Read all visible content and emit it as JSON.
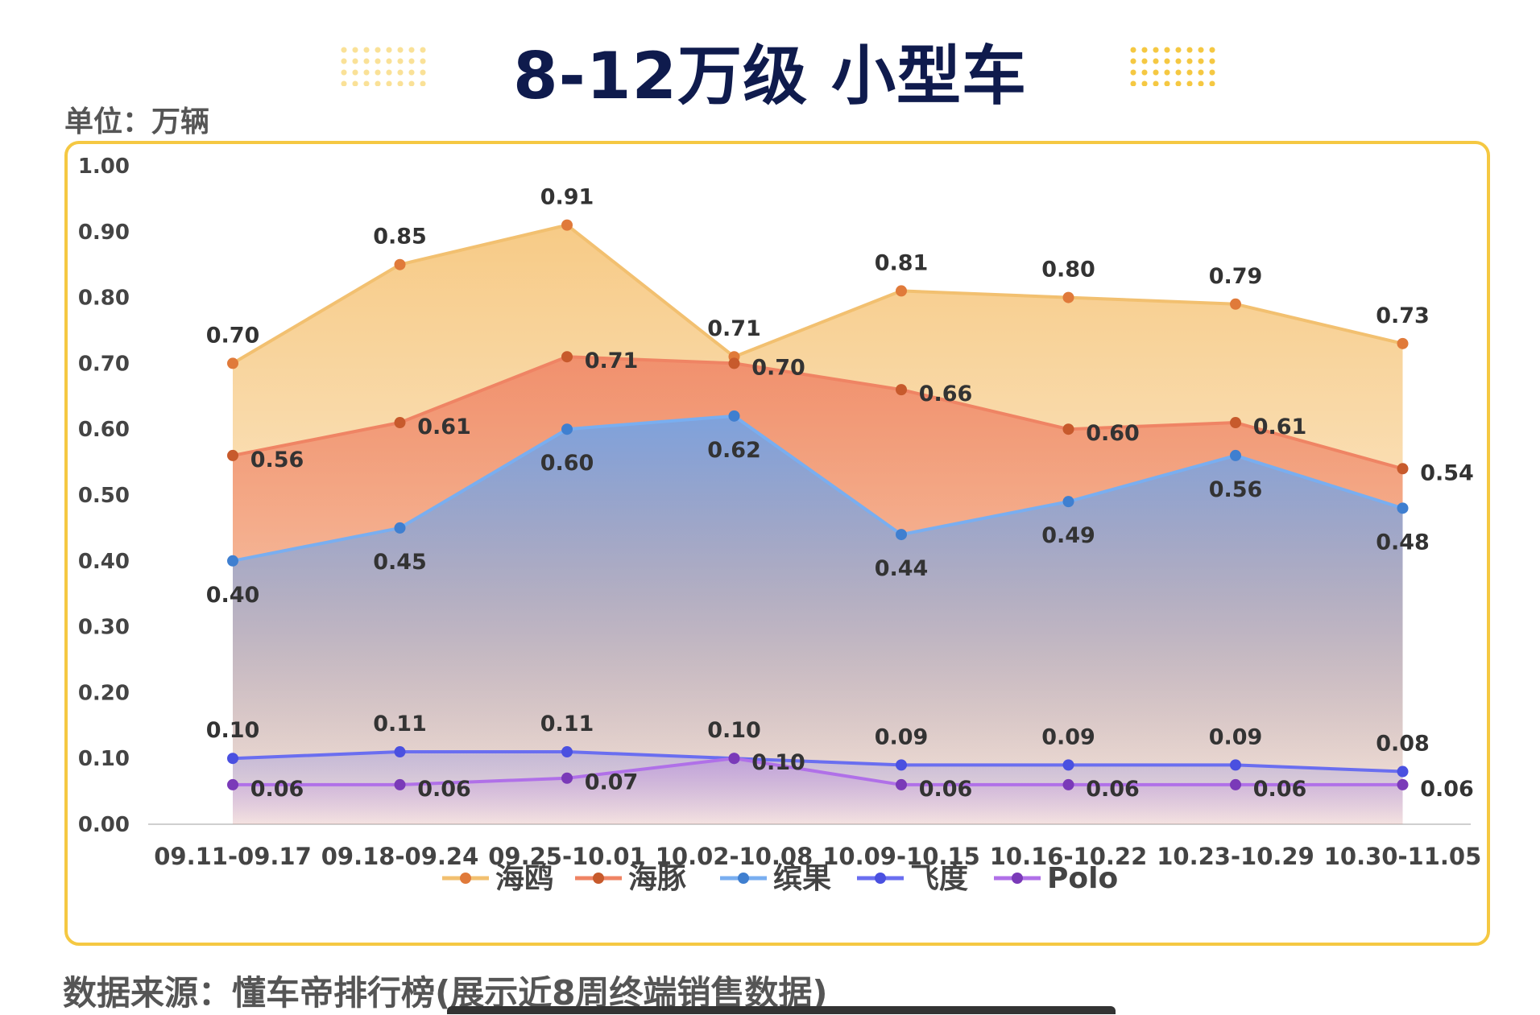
{
  "title": "8-12万级 小型车",
  "unit_label": "单位：万辆",
  "source_label": "数据来源：懂车帝排行榜(展示近8周终端销售数据)",
  "colors": {
    "border": "#f5c842",
    "title": "#0f1b4d"
  },
  "chart_data": {
    "type": "area",
    "categories": [
      "09.11-09.17",
      "09.18-09.24",
      "09.25-10.01",
      "10.02-10.08",
      "10.09-10.15",
      "10.16-10.22",
      "10.23-10.29",
      "10.30-11.05"
    ],
    "ylim": [
      0,
      1
    ],
    "yticks": [
      "0.00",
      "0.10",
      "0.20",
      "0.30",
      "0.40",
      "0.50",
      "0.60",
      "0.70",
      "0.80",
      "0.90",
      "1.00"
    ],
    "grid": false,
    "legend_position": "bottom",
    "series": [
      {
        "name": "海鸥",
        "values": [
          0.7,
          0.85,
          0.91,
          0.71,
          0.81,
          0.8,
          0.79,
          0.73
        ],
        "labels": [
          "0.70",
          "0.85",
          "0.91",
          "0.71",
          "0.81",
          "0.80",
          "0.79",
          "0.73"
        ],
        "line": "#f2c070",
        "fill": "#f4b95e",
        "marker": "#e07a3a"
      },
      {
        "name": "海豚",
        "values": [
          0.56,
          0.61,
          0.71,
          0.7,
          0.66,
          0.6,
          0.61,
          0.54
        ],
        "labels": [
          "0.56",
          "0.61",
          "0.71",
          "0.70",
          "0.66",
          "0.60",
          "0.61",
          "0.54"
        ],
        "line": "#ef8464",
        "fill": "#ee7a5e",
        "marker": "#c75a2c"
      },
      {
        "name": "缤果",
        "values": [
          0.4,
          0.45,
          0.6,
          0.62,
          0.44,
          0.49,
          0.56,
          0.48
        ],
        "labels": [
          "0.40",
          "0.45",
          "0.60",
          "0.62",
          "0.44",
          "0.49",
          "0.56",
          "0.48"
        ],
        "line": "#79aef0",
        "fill": "#6aa3ee",
        "marker": "#3f7fd0"
      },
      {
        "name": "飞度",
        "values": [
          0.1,
          0.11,
          0.11,
          0.1,
          0.09,
          0.09,
          0.09,
          0.08
        ],
        "labels": [
          "0.10",
          "0.11",
          "0.11",
          "0.10",
          "0.09",
          "0.09",
          "0.09",
          "0.08"
        ],
        "line": "#6a6ef0",
        "fill": "#6a6ef0",
        "marker": "#4a50e0"
      },
      {
        "name": "Polo",
        "values": [
          0.06,
          0.06,
          0.07,
          0.1,
          0.06,
          0.06,
          0.06,
          0.06
        ],
        "labels": [
          "0.06",
          "0.06",
          "0.07",
          "0.10",
          "0.06",
          "0.06",
          "0.06",
          "0.06"
        ],
        "line": "#b070e8",
        "fill": "#a65de0",
        "marker": "#7a3ab8"
      }
    ]
  }
}
